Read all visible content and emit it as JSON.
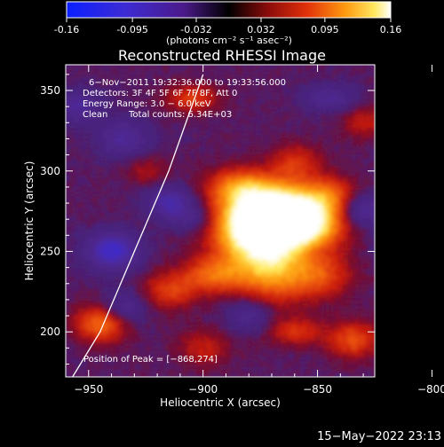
{
  "colorbar": {
    "ticks": [
      "-0.16",
      "-0.095",
      "-0.032",
      "0.032",
      "0.095",
      "0.16"
    ],
    "tick_values": [
      -0.16,
      -0.095,
      -0.032,
      0.032,
      0.095,
      0.16
    ],
    "range": [
      -0.16,
      0.16
    ],
    "units_label": "(photons cm⁻² s⁻¹ asec⁻²)"
  },
  "chart_data": {
    "type": "heatmap",
    "title": "Reconstructed RHESSI Image",
    "xlabel": "Heliocentric X (arcsec)",
    "ylabel": "Heliocentric Y (arcsec)",
    "xlim": [
      -960,
      -825
    ],
    "ylim": [
      172,
      366
    ],
    "x_ticks": [
      -950,
      -900,
      -850,
      -800
    ],
    "y_ticks": [
      200,
      250,
      300,
      350
    ],
    "x_tick_labels": [
      "−950",
      "−900",
      "−850",
      "−800"
    ],
    "y_tick_labels": [
      "200",
      "250",
      "300",
      "350"
    ],
    "peak": {
      "x": -868,
      "y": 274
    },
    "value_range": [
      -0.16,
      0.16
    ],
    "colormap": "rhessi-blue-purple-red-yellow-white",
    "limb_curve": {
      "description_points": [
        [
          -957,
          172
        ],
        [
          -945,
          200
        ],
        [
          -930,
          250
        ],
        [
          -915,
          300
        ],
        [
          -900,
          360
        ]
      ]
    },
    "annotations": {
      "time": "6−Nov−2011 19:32:36.000 to 19:33:56.000",
      "detectors": "Detectors: 3F 4F 5F 6F 7F 8F, Att 0",
      "energy": "Energy Range: 3.0 − 6.0 keV",
      "clean": "Clean",
      "counts": "Total counts: 6.34E+03",
      "peak_label": "Position of Peak = [−868,274]"
    }
  },
  "footer": {
    "timestamp": "15−May−2022 23:13"
  }
}
